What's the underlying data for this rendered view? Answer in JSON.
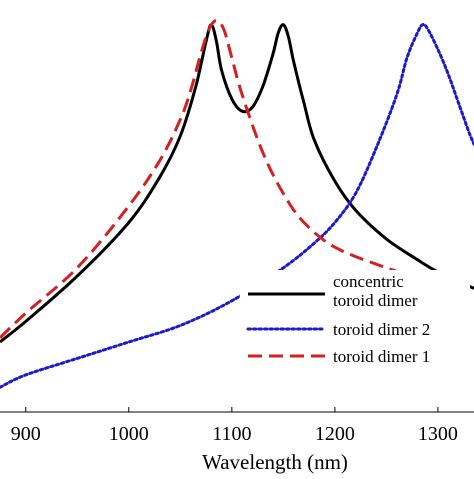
{
  "chart_data": {
    "type": "line",
    "title": "",
    "xlabel": "Wavelength (nm)",
    "ylabel": "",
    "xlim": [
      875,
      1335
    ],
    "ylim": [
      0,
      1
    ],
    "grid": false,
    "legend_position": "bottom-right",
    "x_ticks": [
      900,
      1000,
      1100,
      1200,
      1300
    ],
    "x_tick_labels": [
      "900",
      "1000",
      "1100",
      "1200",
      "1300"
    ],
    "series": [
      {
        "name_lines": [
          "concentric",
          "toroid dimer"
        ],
        "color": "#000000",
        "dash": "solid",
        "x": [
          875,
          900,
          950,
          1000,
          1030,
          1050,
          1065,
          1075,
          1080,
          1085,
          1090,
          1100,
          1110,
          1120,
          1130,
          1140,
          1145,
          1150,
          1155,
          1160,
          1170,
          1180,
          1200,
          1220,
          1250,
          1280,
          1300,
          1335
        ],
        "y": [
          0.17,
          0.22,
          0.33,
          0.46,
          0.57,
          0.67,
          0.79,
          0.9,
          0.94,
          0.9,
          0.83,
          0.76,
          0.73,
          0.74,
          0.79,
          0.87,
          0.92,
          0.94,
          0.91,
          0.85,
          0.75,
          0.66,
          0.56,
          0.49,
          0.42,
          0.37,
          0.34,
          0.3
        ]
      },
      {
        "name": "toroid dimer 2",
        "color": "#1a1acc",
        "dash": "dotted",
        "x": [
          875,
          900,
          950,
          1000,
          1050,
          1100,
          1150,
          1180,
          1200,
          1220,
          1240,
          1260,
          1270,
          1280,
          1285,
          1290,
          1300,
          1310,
          1320,
          1330,
          1335
        ],
        "y": [
          0.06,
          0.09,
          0.13,
          0.17,
          0.21,
          0.27,
          0.35,
          0.41,
          0.46,
          0.53,
          0.64,
          0.77,
          0.86,
          0.92,
          0.94,
          0.93,
          0.88,
          0.82,
          0.75,
          0.68,
          0.65
        ]
      },
      {
        "name": "toroid dimer 1",
        "color": "#d42020",
        "dash": "dashed",
        "x": [
          875,
          900,
          950,
          1000,
          1030,
          1050,
          1060,
          1070,
          1078,
          1085,
          1092,
          1100,
          1110,
          1130,
          1150,
          1170,
          1200,
          1250,
          1300
        ],
        "y": [
          0.18,
          0.24,
          0.35,
          0.5,
          0.61,
          0.71,
          0.78,
          0.87,
          0.93,
          0.95,
          0.93,
          0.86,
          0.77,
          0.63,
          0.53,
          0.46,
          0.4,
          0.35,
          0.31
        ]
      }
    ]
  }
}
